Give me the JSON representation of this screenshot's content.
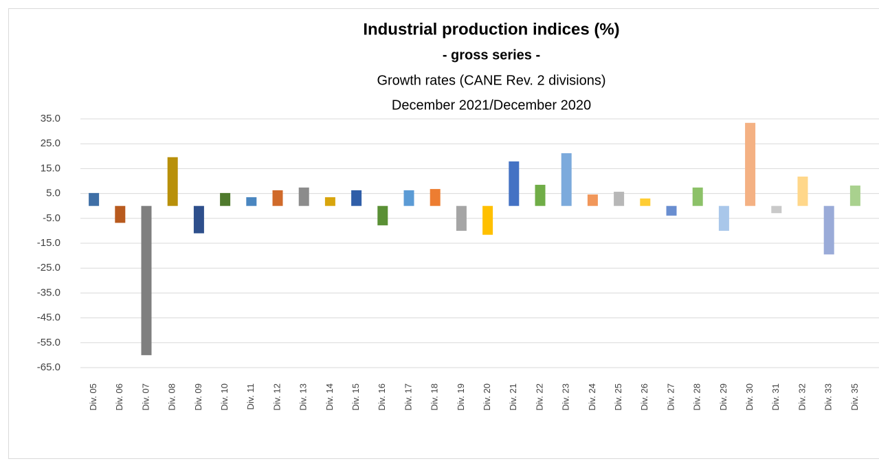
{
  "chart_data": {
    "type": "bar",
    "title": "Industrial production indices (%)",
    "subtitle": [
      "- gross series -",
      "Growth rates (CANE Rev. 2 divisions)",
      "December 2021/December  2020"
    ],
    "categories": [
      "Div. 05",
      "Div. 06",
      "Div. 07",
      "Div. 08",
      "Div. 09",
      "Div. 10",
      "Div. 11",
      "Div. 12",
      "Div. 13",
      "Div. 14",
      "Div. 15",
      "Div. 16",
      "Div. 17",
      "Div. 18",
      "Div. 19",
      "Div. 20",
      "Div. 21",
      "Div. 22",
      "Div. 23",
      "Div. 24",
      "Div. 25",
      "Div. 26",
      "Div. 27",
      "Div. 28",
      "Div. 29",
      "Div. 30",
      "Div. 31",
      "Div. 32",
      "Div. 33",
      "Div. 35"
    ],
    "values": [
      5.2,
      -6.8,
      -60,
      19.6,
      -11,
      5.2,
      3.5,
      6.3,
      7.4,
      3.5,
      6.3,
      -7.8,
      6.3,
      6.8,
      -10,
      -11.6,
      17.9,
      8.5,
      21.2,
      4.6,
      5.7,
      3.0,
      -3.9,
      7.4,
      -10,
      33.4,
      -2.9,
      11.8,
      -19.5,
      8.2
    ],
    "colors": [
      "#3f6fa6",
      "#b85a1e",
      "#7f7f7f",
      "#b8900a",
      "#2e4f8c",
      "#4f7a2d",
      "#4a86c0",
      "#d06a2a",
      "#8c8c8c",
      "#d8a50d",
      "#305ea8",
      "#5a9035",
      "#5b9bd5",
      "#ed7d31",
      "#a5a5a5",
      "#ffc000",
      "#4472c4",
      "#70ad47",
      "#7caadc",
      "#f1975a",
      "#b7b7b7",
      "#ffcd33",
      "#698ed0",
      "#8cc168",
      "#a9c7ea",
      "#f4b183",
      "#c9c9c9",
      "#ffd78a",
      "#9aabd8",
      "#a9d18e"
    ],
    "ylim": [
      -65,
      35
    ],
    "yticks": [
      {
        "value": 35,
        "label": "35.0"
      },
      {
        "value": 25,
        "label": "25.0"
      },
      {
        "value": 15,
        "label": "15.0"
      },
      {
        "value": 5,
        "label": "5.0"
      },
      {
        "value": -5,
        "label": "-5.0"
      },
      {
        "value": -15,
        "label": "-15.0"
      },
      {
        "value": -25,
        "label": "-25.0"
      },
      {
        "value": -35,
        "label": "-35.0"
      },
      {
        "value": -45,
        "label": "-45.0"
      },
      {
        "value": -55,
        "label": "-55.0"
      },
      {
        "value": -65,
        "label": "-65.0"
      }
    ],
    "grid": true
  }
}
